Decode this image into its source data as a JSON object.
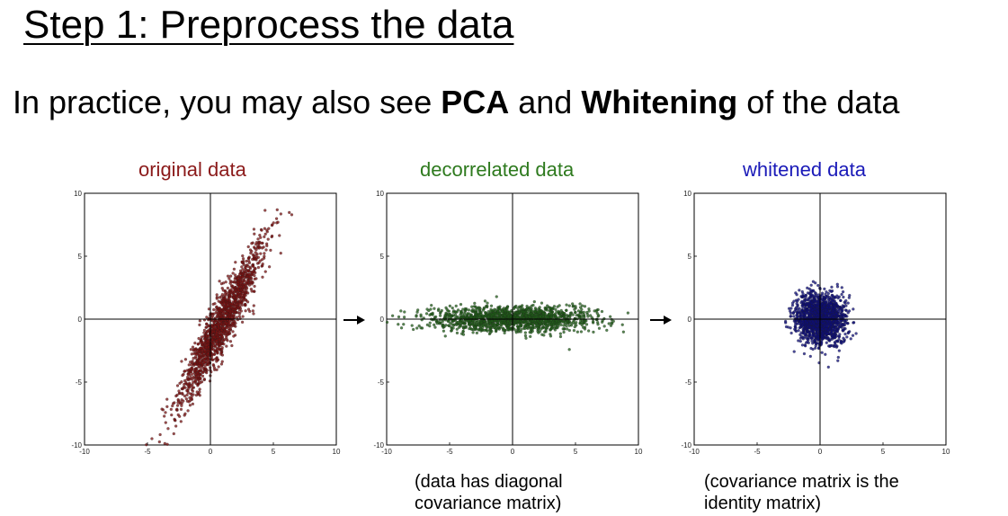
{
  "slide": {
    "title": "Step 1: Preprocess the data",
    "subtitle": {
      "part1": "In practice, you may also see ",
      "bold1": "PCA",
      "part2": " and ",
      "bold2": "Whitening",
      "part3": " of the data"
    }
  },
  "captions": {
    "decorrelated_line1": "(data has diagonal",
    "decorrelated_line2": "covariance matrix)",
    "whitened_line1": "(covariance matrix is the",
    "whitened_line2": "identity matrix)"
  },
  "chart_data": [
    {
      "type": "scatter",
      "title": "original data",
      "title_color": "#8b1a1a",
      "point_color": "#7a1010",
      "xlim": [
        -10,
        10
      ],
      "ylim": [
        -10,
        10
      ],
      "xticks": [
        -10,
        -5,
        0,
        5,
        10
      ],
      "yticks": [
        -10,
        -5,
        0,
        5,
        10
      ],
      "axes_through_origin": true,
      "n_points": 1500,
      "distribution": {
        "mean": [
          0.8,
          -0.5
        ],
        "principal_angle_deg": 63,
        "std_major": 3.6,
        "std_minor": 0.55
      }
    },
    {
      "type": "scatter",
      "title": "decorrelated data",
      "title_color": "#2e7a1e",
      "point_color": "#1f5c17",
      "xlim": [
        -10,
        10
      ],
      "ylim": [
        -10,
        10
      ],
      "xticks": [
        -10,
        -5,
        0,
        5,
        10
      ],
      "yticks": [
        -10,
        -5,
        0,
        5,
        10
      ],
      "axes_through_origin": true,
      "n_points": 1500,
      "distribution": {
        "mean": [
          0.0,
          0.0
        ],
        "principal_angle_deg": 0,
        "std_major": 3.2,
        "std_minor": 0.5
      }
    },
    {
      "type": "scatter",
      "title": "whitened data",
      "title_color": "#1a1ab8",
      "point_color": "#0c0c7a",
      "xlim": [
        -10,
        10
      ],
      "ylim": [
        -10,
        10
      ],
      "xticks": [
        -10,
        -5,
        0,
        5,
        10
      ],
      "yticks": [
        -10,
        -5,
        0,
        5,
        10
      ],
      "axes_through_origin": true,
      "n_points": 1500,
      "distribution": {
        "mean": [
          0.0,
          0.0
        ],
        "principal_angle_deg": 0,
        "std_major": 1.0,
        "std_minor": 1.0
      }
    }
  ]
}
